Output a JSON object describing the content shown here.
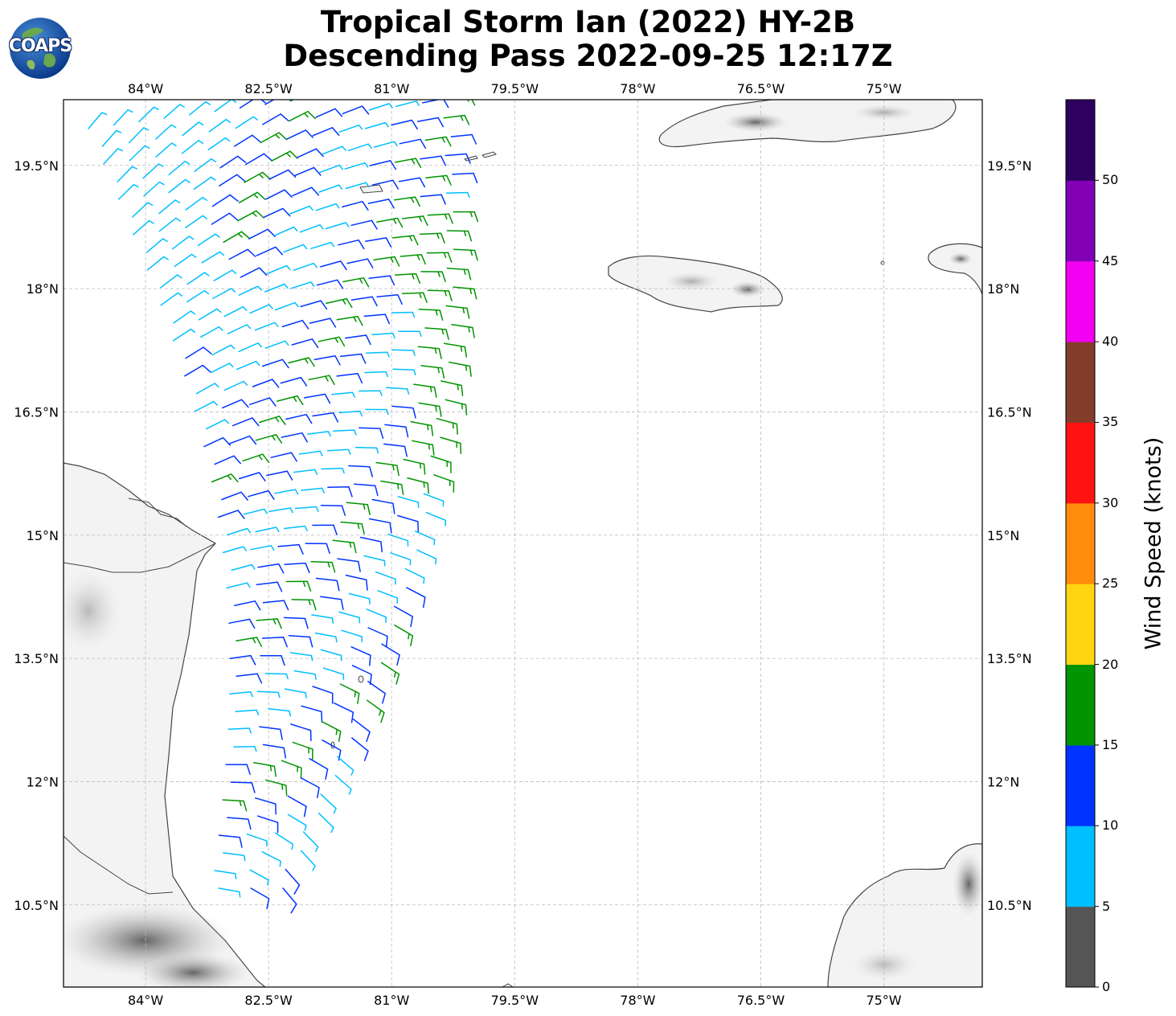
{
  "title_line1": "Tropical Storm Ian (2022) HY-2B",
  "title_line2": "Descending Pass 2022-09-25 12:17Z",
  "logo_text": "COAPS",
  "map": {
    "lon_range": [
      -85.0,
      -73.8
    ],
    "lat_range": [
      9.5,
      20.3
    ],
    "lon_ticks": [
      "84°W",
      "82.5°W",
      "81°W",
      "79.5°W",
      "78°W",
      "76.5°W",
      "75°W"
    ],
    "lon_tick_values": [
      -84,
      -82.5,
      -81,
      -79.5,
      -78,
      -76.5,
      -75
    ],
    "lat_ticks": [
      "19.5°N",
      "18°N",
      "16.5°N",
      "15°N",
      "13.5°N",
      "12°N",
      "10.5°N"
    ],
    "lat_tick_values": [
      19.5,
      18,
      16.5,
      15,
      13.5,
      12,
      10.5
    ],
    "gridlines": true
  },
  "colorbar": {
    "title": "Wind Speed (knots)",
    "tick_labels": [
      "0",
      "5",
      "10",
      "15",
      "20",
      "25",
      "30",
      "35",
      "40",
      "45",
      "50"
    ],
    "colors": [
      "#555555",
      "#00bfff",
      "#0033ff",
      "#009400",
      "#ffd511",
      "#ff8c0a",
      "#ff1212",
      "#833d2b",
      "#f100f1",
      "#8100b5",
      "#2e0060"
    ]
  },
  "colors": {
    "coast": "#444444",
    "land": "#f4f4f4",
    "grid": "#bbbbbb"
  }
}
